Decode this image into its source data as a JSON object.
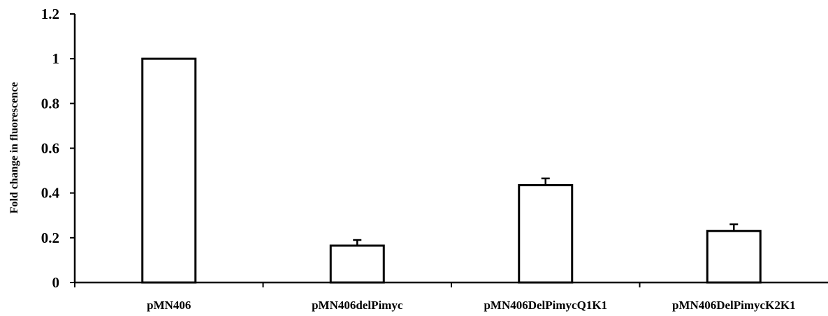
{
  "chart_data": {
    "type": "bar",
    "title": "",
    "xlabel": "",
    "ylabel": "Fold change in fluorescence",
    "categories": [
      "pMN406",
      "pMN406delPimyc",
      "pMN406DelPimycQ1K1",
      "pMN406DelPimycK2K1"
    ],
    "values": [
      1.0,
      0.165,
      0.435,
      0.23
    ],
    "errors": [
      0,
      0.025,
      0.03,
      0.03
    ],
    "ylim": [
      0,
      1.2
    ],
    "yticks": [
      0,
      0.2,
      0.4,
      0.6,
      0.8,
      1,
      1.2
    ],
    "ytick_labels": [
      "0",
      "0.2",
      "0.4",
      "0.6",
      "0.8",
      "1",
      "1.2"
    ],
    "grid": false,
    "legend": "none",
    "bar_fill": "#ffffff",
    "bar_stroke": "#000000"
  }
}
